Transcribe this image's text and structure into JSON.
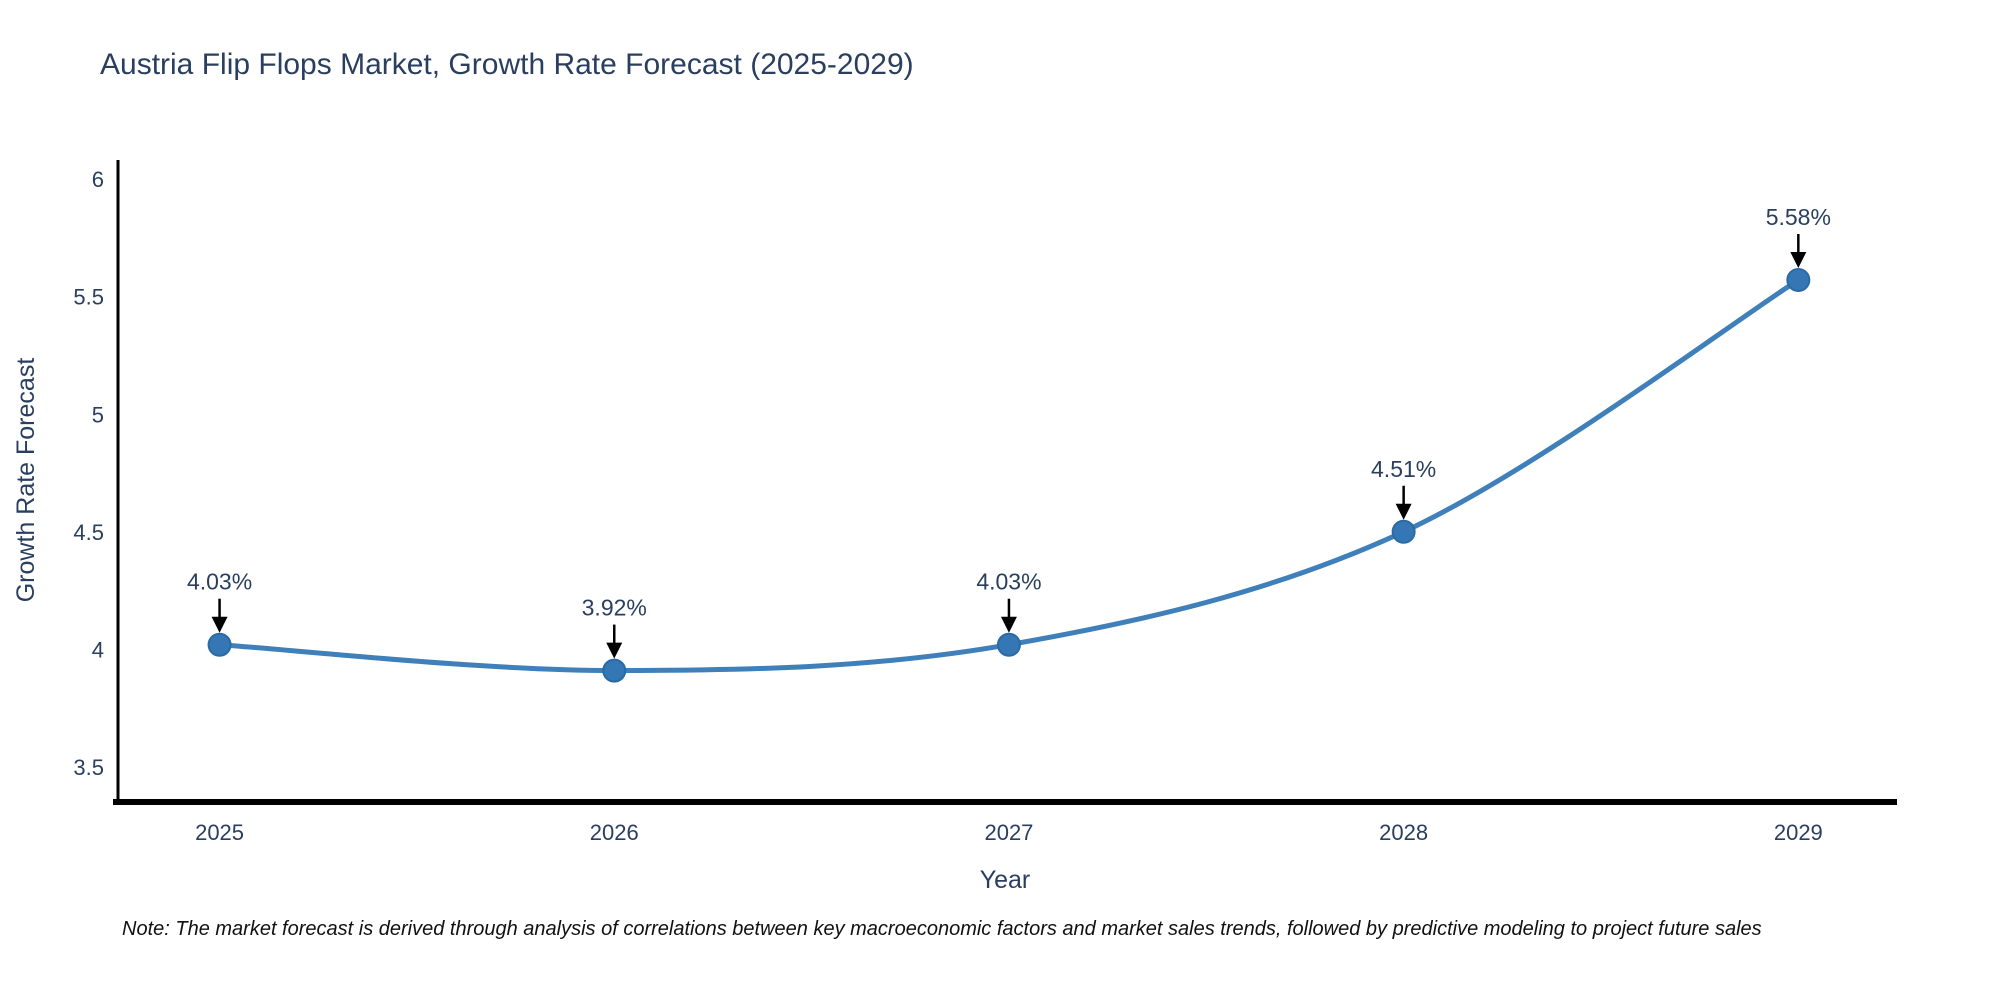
{
  "title": "Austria Flip Flops Market, Growth Rate Forecast (2025-2029)",
  "note": "Note: The market forecast is derived through analysis of correlations between key macroeconomic factors and market sales trends, followed by predictive modeling to project future sales",
  "chart_data": {
    "type": "line",
    "title": "Austria Flip Flops Market, Growth Rate Forecast (2025-2029)",
    "x": [
      2025,
      2026,
      2027,
      2028,
      2029
    ],
    "categories": [
      "2025",
      "2026",
      "2027",
      "2028",
      "2029"
    ],
    "series": [
      {
        "name": "Growth Rate Forecast",
        "values": [
          4.03,
          3.92,
          4.03,
          4.51,
          5.58
        ]
      }
    ],
    "point_labels": [
      "4.03%",
      "3.92%",
      "4.03%",
      "4.51%",
      "5.58%"
    ],
    "xlabel": "Year",
    "ylabel": "Growth Rate Forecast",
    "ytick_labels": [
      "3.5",
      "4",
      "4.5",
      "5",
      "5.5",
      "6"
    ],
    "ytick_values": [
      3.5,
      4,
      4.5,
      5,
      5.5,
      6
    ],
    "ylim": [
      3.37,
      6.09
    ],
    "xlim": [
      2024.73,
      2029.25
    ],
    "grid": false,
    "legend": "none",
    "colors": {
      "line": "#3f7fba",
      "marker_fill": "#3577b4",
      "marker_edge": "#2a6aa5",
      "axis": "#000000",
      "text": "#2a3f5f",
      "annotation_arrow": "#000000",
      "background": "#ffffff"
    }
  }
}
